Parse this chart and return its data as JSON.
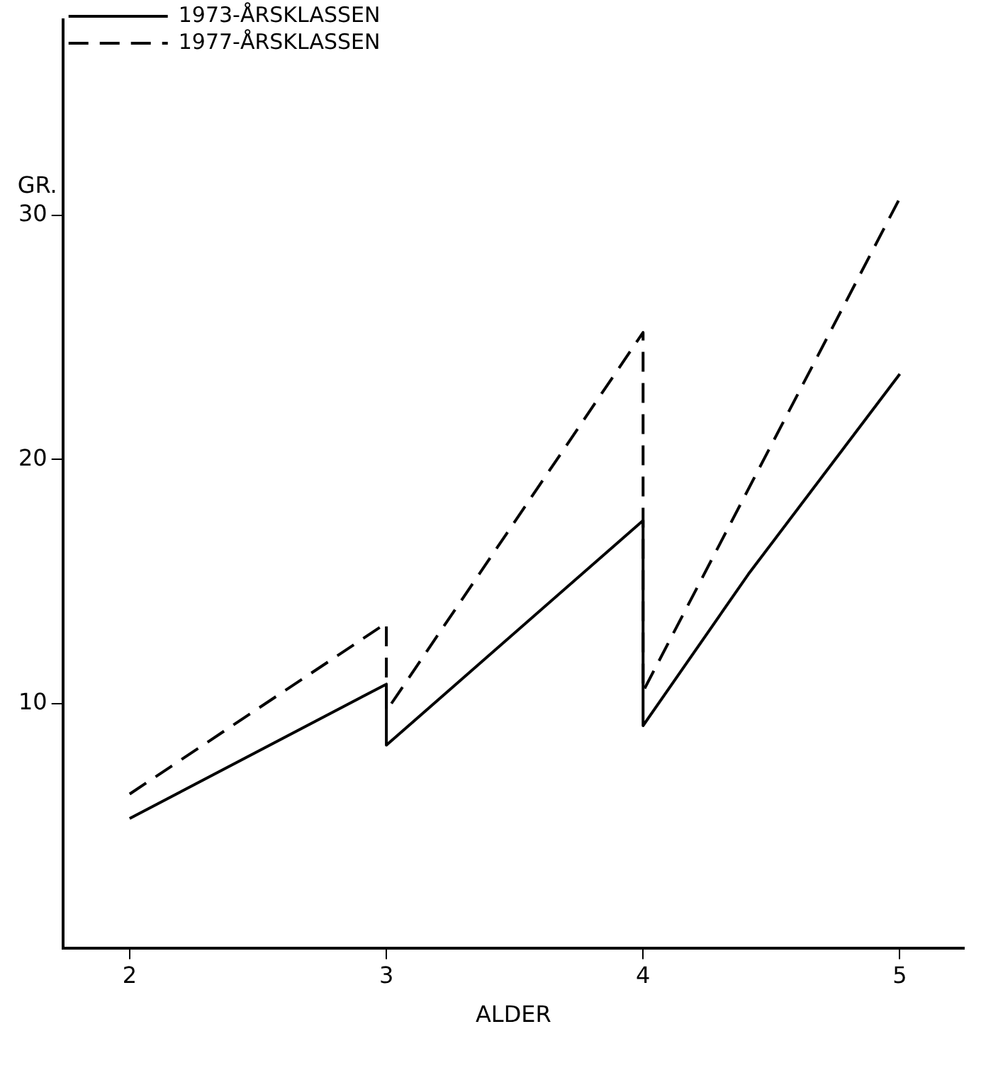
{
  "chart_data": {
    "type": "line",
    "xlabel": "ALDER",
    "ylabel": "GR.",
    "xlim": [
      1.74,
      5.25
    ],
    "xticks": [
      2,
      3,
      4,
      5
    ],
    "ylim": [
      0,
      38
    ],
    "yticks": [
      10,
      20,
      30
    ],
    "grid": false,
    "legend": "top left",
    "marker": "none",
    "series": [
      {
        "name": "1973-ÅRSKLASSEN",
        "color": "#000000",
        "line_style": "solid",
        "x": [
          2,
          3,
          3,
          4,
          4,
          4.41,
          5
        ],
        "values": [
          5.3,
          10.8,
          8.3,
          17.5,
          9.1,
          15.3,
          23.5
        ]
      },
      {
        "name": "1977-ÅRSKLASSEN",
        "color": "#000000",
        "line_style": "dashed",
        "x": [
          2,
          3,
          3,
          4,
          4,
          5
        ],
        "values": [
          6.3,
          13.3,
          9.7,
          25.2,
          10.5,
          30.7
        ]
      }
    ]
  }
}
